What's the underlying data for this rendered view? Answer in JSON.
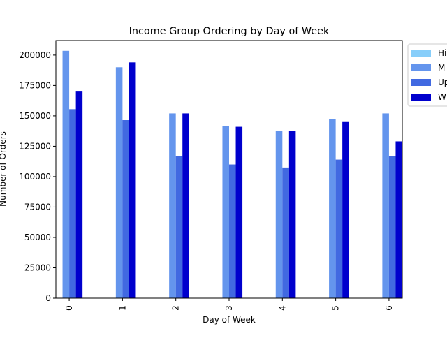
{
  "chart_data": {
    "type": "bar",
    "title": "Income Group Ordering by Day of Week",
    "xlabel": "Day of Week",
    "ylabel": "Number of Orders",
    "categories": [
      "0",
      "1",
      "2",
      "3",
      "4",
      "5",
      "6"
    ],
    "ylim": [
      0,
      212000
    ],
    "yticks": [
      0,
      25000,
      50000,
      75000,
      100000,
      125000,
      150000,
      175000,
      200000
    ],
    "grid": false,
    "legend_position": "outside-top-right",
    "series": [
      {
        "name": "Hi",
        "color": "#87cefa",
        "values": [
          250,
          250,
          250,
          250,
          250,
          250,
          250
        ]
      },
      {
        "name": "M",
        "color": "#6495ed",
        "values": [
          203500,
          190000,
          152000,
          141500,
          137500,
          147500,
          152000
        ]
      },
      {
        "name": "Up",
        "color": "#4169e1",
        "values": [
          155500,
          146500,
          117000,
          110000,
          107500,
          114000,
          116800
        ]
      },
      {
        "name": "W",
        "color": "#0000cd",
        "values": [
          170000,
          194000,
          152000,
          141000,
          137500,
          145500,
          129000
        ]
      }
    ]
  }
}
